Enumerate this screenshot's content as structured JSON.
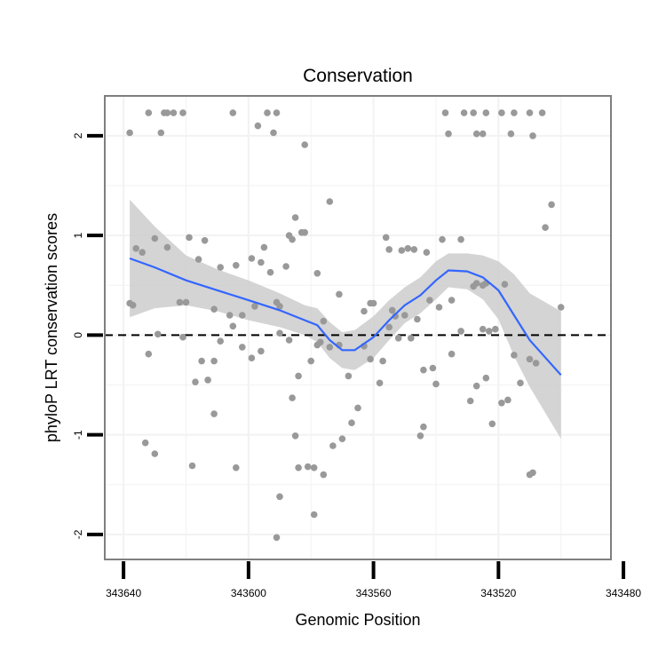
{
  "chart_data": {
    "type": "scatter",
    "title": "Conservation",
    "xlabel": "Genomic Position",
    "ylabel": "phyloP LRT conservation scores",
    "x_reversed": true,
    "xlim": [
      343646,
      343484
    ],
    "ylim": [
      -2.25,
      2.4
    ],
    "x_ticks": [
      343640,
      343600,
      343560,
      343520,
      343480
    ],
    "y_ticks": [
      -2,
      -1,
      0,
      1,
      2
    ],
    "grid": true,
    "reference_line": {
      "y": 0,
      "style": "dashed"
    },
    "colors": {
      "points": "#999999",
      "smooth_line": "#3366ff",
      "confidence_band": "#cccccc",
      "grid": "#f2f2f2",
      "panel_border": "#7f7f7f"
    },
    "series": [
      {
        "type": "scatter",
        "points": [
          [
            343638,
            2.03
          ],
          [
            343632,
            2.23
          ],
          [
            343627,
            2.23
          ],
          [
            343626,
            2.23
          ],
          [
            343624,
            2.23
          ],
          [
            343621,
            2.23
          ],
          [
            343605,
            2.23
          ],
          [
            343594,
            2.23
          ],
          [
            343591,
            2.23
          ],
          [
            343628,
            2.03
          ],
          [
            343597,
            2.1
          ],
          [
            343592,
            2.03
          ],
          [
            343582,
            1.91
          ],
          [
            343537,
            2.23
          ],
          [
            343531,
            2.23
          ],
          [
            343528,
            2.23
          ],
          [
            343524,
            2.23
          ],
          [
            343519,
            2.23
          ],
          [
            343515,
            2.23
          ],
          [
            343510,
            2.23
          ],
          [
            343506,
            2.23
          ],
          [
            343536,
            2.02
          ],
          [
            343527,
            2.02
          ],
          [
            343525,
            2.02
          ],
          [
            343516,
            2.02
          ],
          [
            343509,
            2.0
          ],
          [
            343638,
            0.32
          ],
          [
            343637,
            0.3
          ],
          [
            343636,
            0.87
          ],
          [
            343634,
            0.83
          ],
          [
            343630,
            0.97
          ],
          [
            343626,
            0.88
          ],
          [
            343622,
            0.33
          ],
          [
            343620,
            0.33
          ],
          [
            343619,
            0.98
          ],
          [
            343616,
            0.76
          ],
          [
            343614,
            0.95
          ],
          [
            343611,
            0.26
          ],
          [
            343609,
            0.68
          ],
          [
            343606,
            0.2
          ],
          [
            343604,
            0.7
          ],
          [
            343602,
            0.2
          ],
          [
            343599,
            0.77
          ],
          [
            343598,
            0.29
          ],
          [
            343596,
            0.73
          ],
          [
            343595,
            0.88
          ],
          [
            343593,
            0.63
          ],
          [
            343591,
            0.33
          ],
          [
            343590,
            0.29
          ],
          [
            343588,
            0.69
          ],
          [
            343587,
            1.0
          ],
          [
            343586,
            0.96
          ],
          [
            343585,
            1.18
          ],
          [
            343583,
            1.03
          ],
          [
            343582,
            1.03
          ],
          [
            343578,
            0.62
          ],
          [
            343574,
            1.34
          ],
          [
            343571,
            0.41
          ],
          [
            343563,
            0.24
          ],
          [
            343561,
            0.32
          ],
          [
            343560,
            0.32
          ],
          [
            343556,
            0.98
          ],
          [
            343555,
            0.86
          ],
          [
            343554,
            0.25
          ],
          [
            343551,
            0.85
          ],
          [
            343549,
            0.87
          ],
          [
            343547,
            0.86
          ],
          [
            343543,
            0.83
          ],
          [
            343542,
            0.35
          ],
          [
            343539,
            0.28
          ],
          [
            343538,
            0.96
          ],
          [
            343535,
            0.35
          ],
          [
            343532,
            0.96
          ],
          [
            343528,
            0.49
          ],
          [
            343527,
            0.52
          ],
          [
            343525,
            0.5
          ],
          [
            343524,
            0.52
          ],
          [
            343518,
            0.51
          ],
          [
            343505,
            1.08
          ],
          [
            343503,
            1.31
          ],
          [
            343500,
            0.28
          ],
          [
            343632,
            -0.19
          ],
          [
            343629,
            0.01
          ],
          [
            343621,
            -0.02
          ],
          [
            343617,
            -0.47
          ],
          [
            343615,
            -0.26
          ],
          [
            343613,
            -0.45
          ],
          [
            343611,
            -0.26
          ],
          [
            343609,
            -0.06
          ],
          [
            343605,
            0.09
          ],
          [
            343602,
            -0.12
          ],
          [
            343599,
            -0.23
          ],
          [
            343596,
            -0.16
          ],
          [
            343590,
            0.02
          ],
          [
            343587,
            -0.05
          ],
          [
            343586,
            -0.63
          ],
          [
            343584,
            -0.41
          ],
          [
            343580,
            -0.26
          ],
          [
            343578,
            -0.1
          ],
          [
            343577,
            -0.07
          ],
          [
            343576,
            0.14
          ],
          [
            343574,
            -0.12
          ],
          [
            343571,
            -0.1
          ],
          [
            343568,
            -0.41
          ],
          [
            343565,
            -0.73
          ],
          [
            343563,
            -0.11
          ],
          [
            343561,
            -0.24
          ],
          [
            343558,
            -0.48
          ],
          [
            343557,
            -0.26
          ],
          [
            343555,
            0.08
          ],
          [
            343553,
            0.19
          ],
          [
            343552,
            -0.03
          ],
          [
            343550,
            0.2
          ],
          [
            343548,
            -0.03
          ],
          [
            343546,
            0.16
          ],
          [
            343544,
            -0.35
          ],
          [
            343541,
            -0.33
          ],
          [
            343540,
            -0.49
          ],
          [
            343535,
            -0.19
          ],
          [
            343532,
            0.04
          ],
          [
            343529,
            -0.66
          ],
          [
            343527,
            -0.51
          ],
          [
            343525,
            0.06
          ],
          [
            343524,
            -0.43
          ],
          [
            343523,
            0.04
          ],
          [
            343521,
            0.06
          ],
          [
            343519,
            -0.68
          ],
          [
            343517,
            -0.65
          ],
          [
            343515,
            -0.2
          ],
          [
            343513,
            -0.48
          ],
          [
            343510,
            -0.24
          ],
          [
            343508,
            -0.28
          ],
          [
            343633,
            -1.08
          ],
          [
            343630,
            -1.19
          ],
          [
            343618,
            -1.31
          ],
          [
            343611,
            -0.79
          ],
          [
            343604,
            -1.33
          ],
          [
            343590,
            -1.62
          ],
          [
            343585,
            -1.01
          ],
          [
            343584,
            -1.33
          ],
          [
            343581,
            -1.32
          ],
          [
            343579,
            -1.33
          ],
          [
            343576,
            -1.4
          ],
          [
            343573,
            -1.11
          ],
          [
            343570,
            -1.04
          ],
          [
            343567,
            -0.88
          ],
          [
            343545,
            -1.01
          ],
          [
            343544,
            -0.92
          ],
          [
            343522,
            -0.89
          ],
          [
            343510,
            -1.4
          ],
          [
            343509,
            -1.38
          ],
          [
            343591,
            -2.03
          ],
          [
            343579,
            -1.8
          ]
        ]
      },
      {
        "type": "line",
        "name": "smooth",
        "x": [
          343638,
          343630,
          343620,
          343610,
          343600,
          343590,
          343582,
          343578,
          343574,
          343570,
          343566,
          343560,
          343555,
          343550,
          343545,
          343540,
          343536,
          343530,
          343525,
          343520,
          343515,
          343510,
          343500
        ],
        "y": [
          0.77,
          0.68,
          0.55,
          0.45,
          0.35,
          0.25,
          0.15,
          0.1,
          -0.05,
          -0.15,
          -0.15,
          -0.02,
          0.15,
          0.3,
          0.4,
          0.55,
          0.65,
          0.64,
          0.58,
          0.45,
          0.2,
          -0.05,
          -0.4
        ],
        "band_lower": [
          0.18,
          0.27,
          0.3,
          0.24,
          0.15,
          0.08,
          0.0,
          -0.07,
          -0.23,
          -0.33,
          -0.35,
          -0.23,
          -0.05,
          0.12,
          0.22,
          0.36,
          0.48,
          0.46,
          0.36,
          0.16,
          -0.21,
          -0.52,
          -1.04
        ],
        "band_upper": [
          1.36,
          1.09,
          0.8,
          0.66,
          0.55,
          0.42,
          0.3,
          0.27,
          0.13,
          0.03,
          0.05,
          0.19,
          0.35,
          0.48,
          0.58,
          0.74,
          0.82,
          0.82,
          0.8,
          0.74,
          0.61,
          0.42,
          0.24
        ]
      }
    ]
  }
}
